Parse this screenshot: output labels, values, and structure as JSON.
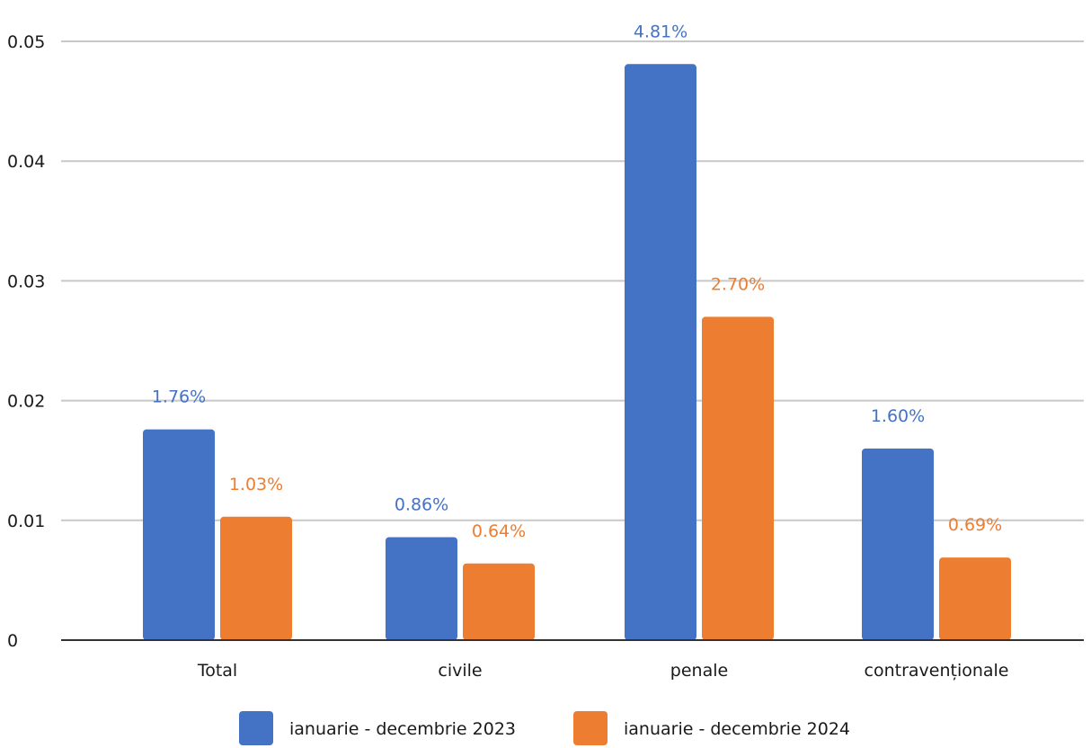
{
  "chart_data": {
    "type": "bar",
    "categories": [
      "Total",
      "civile",
      "penale",
      "contravenționale"
    ],
    "series": [
      {
        "name": "ianuarie - decembrie 2023",
        "color": "#4472c4",
        "values": [
          0.0176,
          0.0086,
          0.0481,
          0.016
        ],
        "labels": [
          "1.76%",
          "0.86%",
          "4.81%",
          "1.60%"
        ]
      },
      {
        "name": "ianuarie - decembrie 2024",
        "color": "#ed7d31",
        "values": [
          0.0103,
          0.0064,
          0.027,
          0.0069
        ],
        "labels": [
          "1.03%",
          "0.64%",
          "2.70%",
          "0.69%"
        ]
      }
    ],
    "yticks": [
      "0",
      "0.01",
      "0.02",
      "0.03",
      "0.04",
      "0.05"
    ],
    "ylim": [
      0,
      0.05
    ],
    "grid": true,
    "legend_position": "bottom"
  }
}
